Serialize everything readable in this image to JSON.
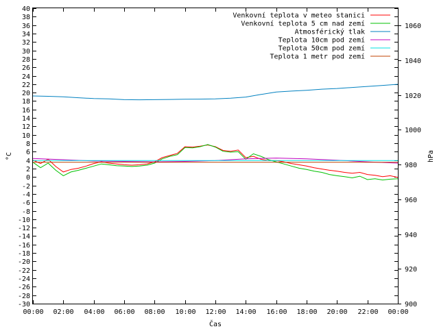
{
  "chart_data": {
    "type": "line",
    "title": "",
    "xlabel": "Čas",
    "ylabel": "°C",
    "y2label": "hPa",
    "x_ticks": [
      "00:00",
      "02:00",
      "04:00",
      "06:00",
      "08:00",
      "10:00",
      "12:00",
      "14:00",
      "16:00",
      "18:00",
      "20:00",
      "22:00",
      "00:00"
    ],
    "x_range_hours": [
      0,
      24
    ],
    "ylim": [
      -30,
      40
    ],
    "ytick_step": 2,
    "y2lim": [
      900,
      1070
    ],
    "y2_ticks": [
      900,
      920,
      940,
      960,
      980,
      1000,
      1020,
      1040,
      1060
    ],
    "grid": false,
    "legend_position": "top-right",
    "series": [
      {
        "name": "Venkovní teplota v meteo stanici",
        "color": "#ff0000",
        "axis": "left",
        "x": [
          0,
          0.5,
          1,
          1.5,
          2,
          2.5,
          3,
          3.5,
          4,
          4.5,
          5,
          5.5,
          6,
          6.5,
          7,
          7.5,
          8,
          8.5,
          9,
          9.5,
          10,
          10.5,
          11,
          11.5,
          12,
          12.5,
          13,
          13.5,
          14,
          14.5,
          15,
          15.5,
          16,
          16.5,
          17,
          17.5,
          18,
          18.5,
          19,
          19.5,
          20,
          20.5,
          21,
          21.5,
          22,
          22.5,
          23,
          23.5,
          24
        ],
        "values": [
          4,
          3.2,
          4.2,
          2.5,
          1.2,
          1.8,
          2.1,
          2.6,
          3.2,
          3.6,
          3.3,
          3.1,
          2.9,
          2.8,
          2.9,
          3.1,
          3.6,
          4.6,
          5.1,
          5.6,
          7.2,
          7.1,
          7.3,
          7.6,
          7.2,
          6.3,
          6.1,
          6.4,
          4.6,
          4.9,
          4.2,
          3.9,
          3.9,
          3.6,
          3.2,
          2.9,
          2.6,
          2.2,
          1.9,
          1.6,
          1.4,
          1.1,
          0.9,
          1.1,
          0.6,
          0.4,
          0.1,
          0.3,
          -0.1
        ]
      },
      {
        "name": "Venkovní teplota 5 cm nad zemí",
        "color": "#00c000",
        "axis": "left",
        "x": [
          0,
          0.5,
          1,
          1.5,
          2,
          2.5,
          3,
          3.5,
          4,
          4.5,
          5,
          5.5,
          6,
          6.5,
          7,
          7.5,
          8,
          8.5,
          9,
          9.5,
          10,
          10.5,
          11,
          11.5,
          12,
          12.5,
          13,
          13.5,
          14,
          14.5,
          15,
          15.5,
          16,
          16.5,
          17,
          17.5,
          18,
          18.5,
          19,
          19.5,
          20,
          20.5,
          21,
          21.5,
          22,
          22.5,
          23,
          23.5,
          24
        ],
        "values": [
          3.5,
          2.2,
          3.3,
          1.6,
          0.3,
          1.2,
          1.6,
          2.1,
          2.6,
          3.1,
          2.9,
          2.7,
          2.6,
          2.5,
          2.6,
          2.8,
          3.3,
          4.3,
          4.9,
          5.3,
          7.0,
          6.9,
          7.2,
          7.7,
          7.1,
          6.1,
          5.9,
          6.0,
          4.2,
          5.5,
          4.9,
          4.1,
          3.6,
          3.1,
          2.6,
          2.1,
          1.8,
          1.4,
          1.1,
          0.6,
          0.3,
          0.1,
          -0.2,
          0.2,
          -0.6,
          -0.4,
          -0.7,
          -0.5,
          -0.4
        ]
      },
      {
        "name": "Atmosférický tlak",
        "color": "#0080c0",
        "axis": "right",
        "x": [
          0,
          1,
          2,
          3,
          4,
          5,
          6,
          7,
          8,
          9,
          10,
          11,
          12,
          13,
          14,
          15,
          16,
          17,
          18,
          19,
          20,
          21,
          22,
          23,
          24
        ],
        "values": [
          1019.5,
          1019.3,
          1019.0,
          1018.5,
          1018.0,
          1017.8,
          1017.4,
          1017.3,
          1017.4,
          1017.5,
          1017.6,
          1017.7,
          1017.8,
          1018.2,
          1018.9,
          1020.4,
          1021.8,
          1022.3,
          1022.8,
          1023.4,
          1023.8,
          1024.4,
          1025.0,
          1025.6,
          1026.2
        ]
      },
      {
        "name": "Teplota 10cm pod zemí",
        "color": "#c000c0",
        "axis": "left",
        "x": [
          0,
          2,
          4,
          6,
          8,
          10,
          12,
          14,
          16,
          18,
          20,
          22,
          24
        ],
        "values": [
          4.4,
          4.1,
          3.8,
          3.7,
          3.6,
          3.7,
          3.9,
          4.3,
          4.5,
          4.3,
          4.0,
          3.6,
          3.3
        ]
      },
      {
        "name": "Teplota 50cm pod zemí",
        "color": "#00e0e0",
        "axis": "left",
        "x": [
          0,
          24
        ],
        "values": [
          3.9,
          3.9
        ]
      },
      {
        "name": "Teplota 1 metr pod zemí",
        "color": "#c04000",
        "axis": "left",
        "x": [
          0,
          24
        ],
        "values": [
          3.5,
          3.5
        ]
      }
    ]
  }
}
